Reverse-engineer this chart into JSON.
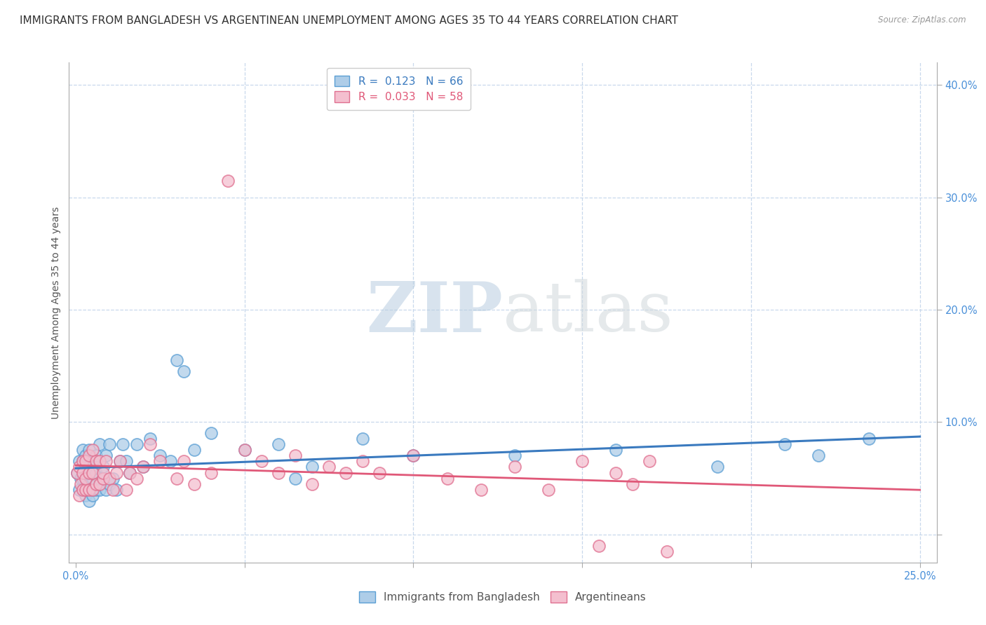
{
  "title": "IMMIGRANTS FROM BANGLADESH VS ARGENTINEAN UNEMPLOYMENT AMONG AGES 35 TO 44 YEARS CORRELATION CHART",
  "source": "Source: ZipAtlas.com",
  "ylabel": "Unemployment Among Ages 35 to 44 years",
  "xlim": [
    -0.002,
    0.255
  ],
  "ylim": [
    -0.025,
    0.42
  ],
  "xticks": [
    0.0,
    0.05,
    0.1,
    0.15,
    0.2,
    0.25
  ],
  "yticks": [
    0.0,
    0.1,
    0.2,
    0.3,
    0.4
  ],
  "xtick_labels": [
    "0.0%",
    "",
    "",
    "",
    "",
    "25.0%"
  ],
  "ytick_labels": [
    "",
    "10.0%",
    "20.0%",
    "30.0%",
    "40.0%"
  ],
  "blue_R": 0.123,
  "blue_N": 66,
  "pink_R": 0.033,
  "pink_N": 58,
  "blue_color": "#aecde8",
  "pink_color": "#f4bfcf",
  "blue_edge": "#5b9fd4",
  "pink_edge": "#e07090",
  "blue_line_color": "#3a7abf",
  "pink_line_color": "#e05878",
  "watermark_zip": "ZIP",
  "watermark_atlas": "atlas",
  "background_color": "#ffffff",
  "grid_color": "#c8d8ec",
  "blue_x": [
    0.0005,
    0.001,
    0.001,
    0.0015,
    0.002,
    0.002,
    0.002,
    0.002,
    0.002,
    0.003,
    0.003,
    0.003,
    0.003,
    0.003,
    0.003,
    0.004,
    0.004,
    0.004,
    0.004,
    0.004,
    0.004,
    0.005,
    0.005,
    0.005,
    0.005,
    0.005,
    0.006,
    0.006,
    0.006,
    0.006,
    0.007,
    0.007,
    0.007,
    0.008,
    0.008,
    0.009,
    0.009,
    0.01,
    0.01,
    0.011,
    0.012,
    0.013,
    0.014,
    0.015,
    0.016,
    0.018,
    0.02,
    0.022,
    0.025,
    0.028,
    0.03,
    0.032,
    0.035,
    0.04,
    0.05,
    0.06,
    0.065,
    0.07,
    0.085,
    0.1,
    0.13,
    0.16,
    0.19,
    0.21,
    0.22,
    0.235
  ],
  "blue_y": [
    0.055,
    0.04,
    0.065,
    0.05,
    0.04,
    0.05,
    0.055,
    0.065,
    0.075,
    0.035,
    0.04,
    0.05,
    0.055,
    0.06,
    0.07,
    0.03,
    0.04,
    0.045,
    0.055,
    0.06,
    0.075,
    0.035,
    0.04,
    0.05,
    0.055,
    0.065,
    0.04,
    0.045,
    0.055,
    0.07,
    0.04,
    0.05,
    0.08,
    0.05,
    0.06,
    0.04,
    0.07,
    0.045,
    0.08,
    0.05,
    0.04,
    0.065,
    0.08,
    0.065,
    0.055,
    0.08,
    0.06,
    0.085,
    0.07,
    0.065,
    0.155,
    0.145,
    0.075,
    0.09,
    0.075,
    0.08,
    0.05,
    0.06,
    0.085,
    0.07,
    0.07,
    0.075,
    0.06,
    0.08,
    0.07,
    0.085
  ],
  "pink_x": [
    0.0005,
    0.001,
    0.001,
    0.0015,
    0.002,
    0.002,
    0.002,
    0.003,
    0.003,
    0.003,
    0.004,
    0.004,
    0.004,
    0.005,
    0.005,
    0.005,
    0.006,
    0.006,
    0.007,
    0.007,
    0.008,
    0.008,
    0.009,
    0.01,
    0.011,
    0.012,
    0.013,
    0.015,
    0.016,
    0.018,
    0.02,
    0.022,
    0.025,
    0.03,
    0.032,
    0.035,
    0.04,
    0.045,
    0.05,
    0.055,
    0.06,
    0.065,
    0.07,
    0.075,
    0.08,
    0.085,
    0.09,
    0.1,
    0.11,
    0.12,
    0.13,
    0.14,
    0.15,
    0.155,
    0.16,
    0.165,
    0.17,
    0.175
  ],
  "pink_y": [
    0.055,
    0.035,
    0.06,
    0.045,
    0.04,
    0.055,
    0.065,
    0.04,
    0.05,
    0.065,
    0.04,
    0.055,
    0.07,
    0.04,
    0.055,
    0.075,
    0.045,
    0.065,
    0.045,
    0.065,
    0.05,
    0.055,
    0.065,
    0.05,
    0.04,
    0.055,
    0.065,
    0.04,
    0.055,
    0.05,
    0.06,
    0.08,
    0.065,
    0.05,
    0.065,
    0.045,
    0.055,
    0.315,
    0.075,
    0.065,
    0.055,
    0.07,
    0.045,
    0.06,
    0.055,
    0.065,
    0.055,
    0.07,
    0.05,
    0.04,
    0.06,
    0.04,
    0.065,
    -0.01,
    0.055,
    0.045,
    0.065,
    -0.015
  ],
  "title_fontsize": 11,
  "axis_label_fontsize": 10,
  "tick_fontsize": 10.5,
  "legend_fontsize": 11
}
